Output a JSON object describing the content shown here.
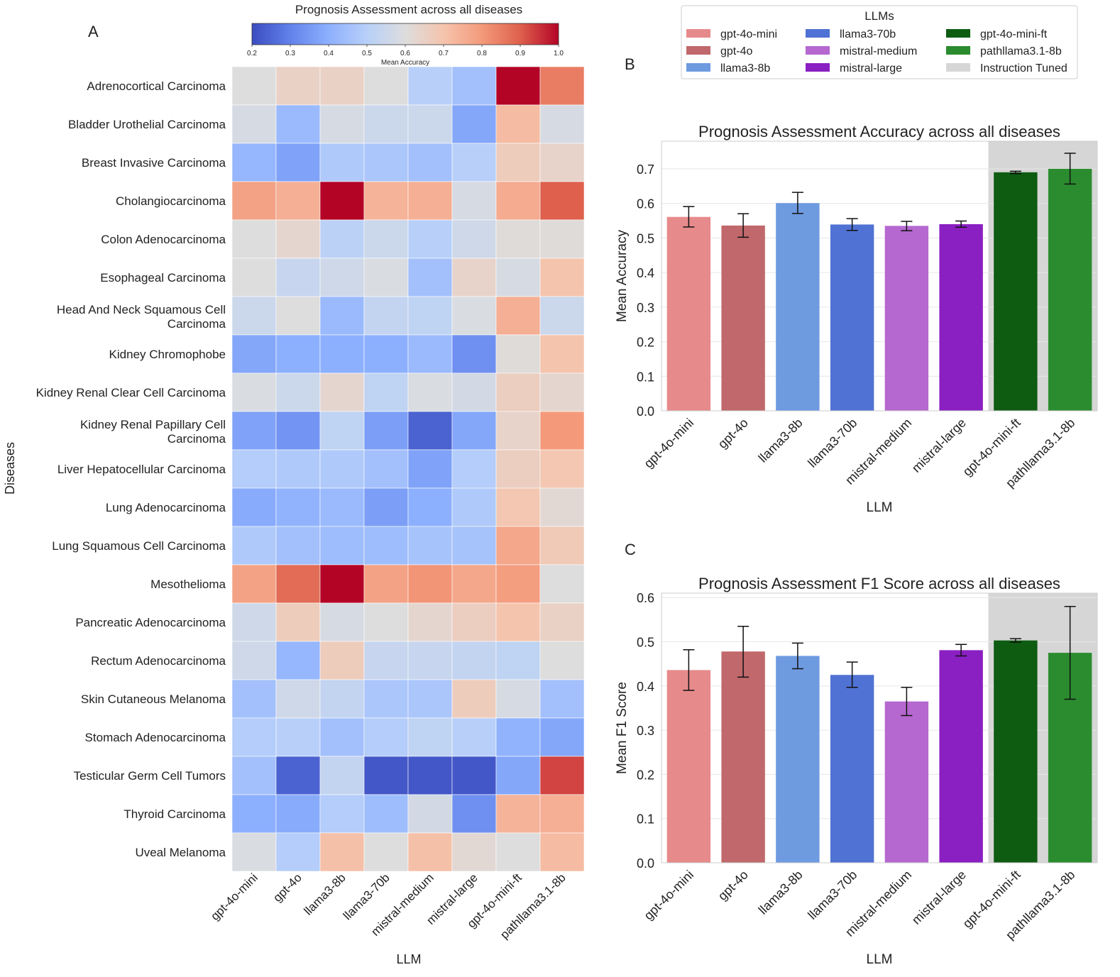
{
  "panel_labels": {
    "a": "A",
    "b": "B",
    "c": "C"
  },
  "legend": {
    "title": "LLMs",
    "items": [
      {
        "label": "gpt-4o-mini",
        "color": "#e68a8c"
      },
      {
        "label": "gpt-4o",
        "color": "#c0686b"
      },
      {
        "label": "llama3-8b",
        "color": "#6e9ae0"
      },
      {
        "label": "llama3-70b",
        "color": "#4f72d4"
      },
      {
        "label": "mistral-medium",
        "color": "#b568cf"
      },
      {
        "label": "mistral-large",
        "color": "#8a1fc2"
      },
      {
        "label": "gpt-4o-mini-ft",
        "color": "#0e5c12"
      },
      {
        "label": "pathllama3.1-8b",
        "color": "#2a8c2e"
      },
      {
        "label": "Instruction Tuned",
        "color": "#d6d6d6"
      }
    ]
  },
  "chart_data": [
    {
      "type": "heatmap",
      "title": "Prognosis Assessment across all diseases",
      "xlabel": "LLM",
      "ylabel": "Diseases",
      "colorbar": {
        "label": "Mean Accuracy",
        "range": [
          0.2,
          1.0
        ],
        "ticks": [
          "0.2",
          "0.3",
          "0.4",
          "0.5",
          "0.6",
          "0.7",
          "0.8",
          "0.9",
          "1.0"
        ],
        "colormap": "coolwarm"
      },
      "x": [
        "gpt-4o-mini",
        "gpt-4o",
        "llama3-8b",
        "llama3-70b",
        "mistral-medium",
        "mistral-large",
        "gpt-4o-mini-ft",
        "pathllama3.1-8b"
      ],
      "y": [
        "Adrenocortical Carcinoma",
        "Bladder Urothelial Carcinoma",
        "Breast Invasive Carcinoma",
        "Cholangiocarcinoma",
        "Colon Adenocarcinoma",
        "Esophageal Carcinoma",
        "Head And Neck Squamous Cell Carcinoma",
        "Kidney Chromophobe",
        "Kidney Renal Clear Cell Carcinoma",
        "Kidney Renal Papillary Cell Carcinoma",
        "Liver Hepatocellular Carcinoma",
        "Lung Adenocarcinoma",
        "Lung Squamous Cell Carcinoma",
        "Mesothelioma",
        "Pancreatic Adenocarcinoma",
        "Rectum Adenocarcinoma",
        "Skin Cutaneous Melanoma",
        "Stomach Adenocarcinoma",
        "Testicular Germ Cell Tumors",
        "Thyroid Carcinoma",
        "Uveal Melanoma"
      ],
      "values": [
        [
          0.6,
          0.65,
          0.65,
          0.6,
          0.5,
          0.45,
          1.0,
          0.85
        ],
        [
          0.58,
          0.43,
          0.58,
          0.55,
          0.55,
          0.38,
          0.72,
          0.58
        ],
        [
          0.42,
          0.37,
          0.48,
          0.47,
          0.45,
          0.5,
          0.67,
          0.64
        ],
        [
          0.78,
          0.75,
          1.0,
          0.74,
          0.75,
          0.58,
          0.76,
          0.9
        ],
        [
          0.6,
          0.63,
          0.51,
          0.55,
          0.5,
          0.56,
          0.61,
          0.61
        ],
        [
          0.6,
          0.54,
          0.56,
          0.59,
          0.45,
          0.64,
          0.58,
          0.7
        ],
        [
          0.55,
          0.6,
          0.43,
          0.53,
          0.52,
          0.59,
          0.75,
          0.55
        ],
        [
          0.38,
          0.4,
          0.4,
          0.4,
          0.43,
          0.33,
          0.61,
          0.7
        ],
        [
          0.59,
          0.55,
          0.63,
          0.52,
          0.59,
          0.57,
          0.66,
          0.63
        ],
        [
          0.37,
          0.34,
          0.52,
          0.36,
          0.24,
          0.38,
          0.64,
          0.8
        ],
        [
          0.49,
          0.48,
          0.48,
          0.45,
          0.37,
          0.49,
          0.66,
          0.69
        ],
        [
          0.39,
          0.41,
          0.43,
          0.36,
          0.4,
          0.48,
          0.69,
          0.62
        ],
        [
          0.48,
          0.45,
          0.44,
          0.44,
          0.46,
          0.46,
          0.77,
          0.68
        ],
        [
          0.78,
          0.88,
          1.0,
          0.78,
          0.81,
          0.77,
          0.79,
          0.6
        ],
        [
          0.56,
          0.67,
          0.58,
          0.6,
          0.63,
          0.66,
          0.7,
          0.65
        ],
        [
          0.56,
          0.42,
          0.67,
          0.54,
          0.54,
          0.53,
          0.52,
          0.6
        ],
        [
          0.45,
          0.56,
          0.53,
          0.47,
          0.47,
          0.67,
          0.58,
          0.45
        ],
        [
          0.49,
          0.5,
          0.45,
          0.49,
          0.52,
          0.5,
          0.41,
          0.38
        ],
        [
          0.45,
          0.24,
          0.53,
          0.22,
          0.22,
          0.22,
          0.38,
          0.93
        ],
        [
          0.4,
          0.39,
          0.49,
          0.44,
          0.57,
          0.33,
          0.74,
          0.75
        ],
        [
          0.59,
          0.49,
          0.71,
          0.6,
          0.71,
          0.62,
          0.6,
          0.72
        ]
      ]
    },
    {
      "type": "bar",
      "title": "Prognosis Assessment Accuracy across all diseases",
      "xlabel": "LLM",
      "ylabel": "Mean Accuracy",
      "ylim": [
        0,
        0.78
      ],
      "yticks": [
        "0.0",
        "0.1",
        "0.2",
        "0.3",
        "0.4",
        "0.5",
        "0.6",
        "0.7"
      ],
      "categories": [
        "gpt-4o-mini",
        "gpt-4o",
        "llama3-8b",
        "llama3-70b",
        "mistral-medium",
        "mistral-large",
        "gpt-4o-mini-ft",
        "pathllama3.1-8b"
      ],
      "values": [
        0.561,
        0.536,
        0.601,
        0.539,
        0.535,
        0.54,
        0.69,
        0.7
      ],
      "error": [
        [
          0.532,
          0.591
        ],
        [
          0.502,
          0.57
        ],
        [
          0.571,
          0.632
        ],
        [
          0.522,
          0.556
        ],
        [
          0.521,
          0.548
        ],
        [
          0.531,
          0.549
        ],
        [
          0.686,
          0.693
        ],
        [
          0.656,
          0.745
        ]
      ],
      "highlight_region": {
        "label": "Instruction Tuned",
        "categories": [
          "gpt-4o-mini-ft",
          "pathllama3.1-8b"
        ]
      },
      "grid": true
    },
    {
      "type": "bar",
      "title": "Prognosis Assessment F1 Score across all diseases",
      "xlabel": "LLM",
      "ylabel": "Mean F1 Score",
      "ylim": [
        0,
        0.61
      ],
      "yticks": [
        "0.0",
        "0.1",
        "0.2",
        "0.3",
        "0.4",
        "0.5",
        "0.6"
      ],
      "categories": [
        "gpt-4o-mini",
        "gpt-4o",
        "llama3-8b",
        "llama3-70b",
        "mistral-medium",
        "mistral-large",
        "gpt-4o-mini-ft",
        "pathllama3.1-8b"
      ],
      "values": [
        0.436,
        0.478,
        0.468,
        0.425,
        0.365,
        0.481,
        0.503,
        0.475
      ],
      "error": [
        [
          0.39,
          0.482
        ],
        [
          0.42,
          0.535
        ],
        [
          0.439,
          0.497
        ],
        [
          0.397,
          0.454
        ],
        [
          0.333,
          0.397
        ],
        [
          0.468,
          0.494
        ],
        [
          0.499,
          0.507
        ],
        [
          0.37,
          0.58
        ]
      ],
      "highlight_region": {
        "label": "Instruction Tuned",
        "categories": [
          "gpt-4o-mini-ft",
          "pathllama3.1-8b"
        ]
      },
      "grid": true
    }
  ]
}
